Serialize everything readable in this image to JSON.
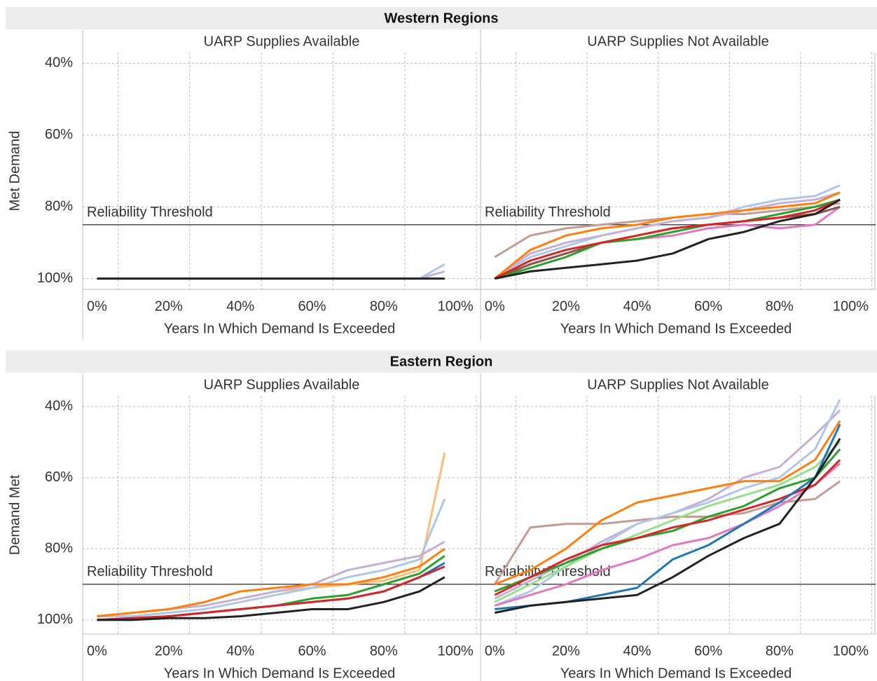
{
  "headers": [
    "Western Regions",
    "Eastern Region"
  ],
  "chart_data": [
    {
      "type": "line",
      "title": "UARP Supplies Available",
      "ylabel": "Met Demand",
      "xlabel": "Years In Which Demand Is Exceeded",
      "x": [
        0,
        10,
        20,
        30,
        40,
        50,
        60,
        70,
        80,
        90,
        97
      ],
      "xlim": [
        -4,
        107
      ],
      "ylim": [
        37,
        103
      ],
      "y_inverted": true,
      "grid": true,
      "xticks": [
        {
          "value": 0,
          "label": "0%"
        },
        {
          "value": 20,
          "label": "20%"
        },
        {
          "value": 40,
          "label": "40%"
        },
        {
          "value": 60,
          "label": "60%"
        },
        {
          "value": 80,
          "label": "80%"
        },
        {
          "value": 100,
          "label": "100%"
        }
      ],
      "yticks": [
        {
          "value": 40,
          "label": "40%"
        },
        {
          "value": 60,
          "label": "60%"
        },
        {
          "value": 80,
          "label": "80%"
        },
        {
          "value": 100,
          "label": "100%"
        }
      ],
      "annotations": [
        {
          "text": "Reliability Threshold",
          "value": 85
        }
      ],
      "series": [
        {
          "color": "#c5b0d5",
          "values": [
            100,
            100,
            100,
            100,
            100,
            100,
            100,
            100,
            100,
            100,
            98
          ]
        },
        {
          "color": "#aec7e8",
          "values": [
            100,
            100,
            100,
            100,
            100,
            100,
            100,
            100,
            100,
            100,
            96
          ]
        },
        {
          "color": "#222222",
          "values": [
            100,
            100,
            100,
            100,
            100,
            100,
            100,
            100,
            100,
            100,
            100
          ]
        }
      ]
    },
    {
      "type": "line",
      "title": "UARP Supplies Not Available",
      "xlabel": "Years In Which Demand Is Exceeded",
      "x": [
        0,
        10,
        20,
        30,
        40,
        50,
        60,
        70,
        80,
        90,
        97
      ],
      "xlim": [
        -4,
        107
      ],
      "ylim": [
        37,
        103
      ],
      "y_inverted": true,
      "grid": true,
      "xticks": [
        {
          "value": 0,
          "label": "0%"
        },
        {
          "value": 20,
          "label": "20%"
        },
        {
          "value": 40,
          "label": "40%"
        },
        {
          "value": 60,
          "label": "60%"
        },
        {
          "value": 80,
          "label": "80%"
        },
        {
          "value": 100,
          "label": "100%"
        }
      ],
      "yticks": [
        40,
        60,
        80,
        100
      ],
      "annotations": [
        {
          "text": "Reliability Threshold",
          "value": 85
        }
      ],
      "series": [
        {
          "color": "#c49c94",
          "values": [
            94,
            88,
            86,
            85,
            84,
            83,
            82,
            82,
            81,
            80,
            79
          ]
        },
        {
          "color": "#aec7e8",
          "values": [
            100,
            94,
            91,
            88,
            86,
            84,
            83,
            80,
            78,
            77,
            74
          ]
        },
        {
          "color": "#c5b0d5",
          "values": [
            100,
            93,
            90,
            88,
            86,
            84,
            83,
            81,
            79,
            78,
            76
          ]
        },
        {
          "color": "#ff7f0e",
          "values": [
            100,
            92,
            88,
            86,
            85,
            83,
            82,
            81,
            80,
            79,
            76
          ]
        },
        {
          "color": "#e377c2",
          "values": [
            100,
            96,
            93,
            90,
            89,
            88,
            86,
            85,
            86,
            85,
            80
          ]
        },
        {
          "color": "#8c564b",
          "values": [
            100,
            96,
            93,
            90,
            88,
            86,
            85,
            84,
            83,
            82,
            80
          ]
        },
        {
          "color": "#2ca02c",
          "values": [
            100,
            97,
            94,
            90,
            89,
            87,
            85,
            84,
            82,
            80,
            78
          ]
        },
        {
          "color": "#d62728",
          "values": [
            100,
            95,
            92,
            90,
            88,
            86,
            85,
            84,
            83,
            81,
            78
          ]
        },
        {
          "color": "#222222",
          "values": [
            100,
            98,
            97,
            96,
            95,
            93,
            89,
            87,
            84,
            82,
            78
          ]
        }
      ]
    },
    {
      "type": "line",
      "title": "UARP Supplies Available",
      "ylabel": "Demand Met",
      "xlabel": "Years In Which Demand Is Exceeded",
      "x": [
        0,
        10,
        20,
        30,
        40,
        50,
        60,
        70,
        80,
        90,
        97
      ],
      "xlim": [
        -4,
        107
      ],
      "ylim": [
        37,
        104
      ],
      "y_inverted": true,
      "grid": true,
      "xticks": [
        {
          "value": 0,
          "label": "0%"
        },
        {
          "value": 20,
          "label": "20%"
        },
        {
          "value": 40,
          "label": "40%"
        },
        {
          "value": 60,
          "label": "60%"
        },
        {
          "value": 80,
          "label": "80%"
        },
        {
          "value": 100,
          "label": "100%"
        }
      ],
      "yticks": [
        {
          "value": 40,
          "label": "40%"
        },
        {
          "value": 60,
          "label": "60%"
        },
        {
          "value": 80,
          "label": "80%"
        },
        {
          "value": 100,
          "label": "100%"
        }
      ],
      "annotations": [
        {
          "text": "Reliability Threshold",
          "value": 90
        }
      ],
      "series": [
        {
          "color": "#ffbb78",
          "values": [
            99,
            98,
            97,
            96,
            94,
            92,
            91,
            90,
            89,
            86,
            53
          ]
        },
        {
          "color": "#aec7e8",
          "values": [
            99,
            99,
            98,
            97,
            95,
            93,
            91,
            88,
            86,
            83,
            66
          ]
        },
        {
          "color": "#c5b0d5",
          "values": [
            99,
            98,
            97,
            96,
            94,
            92,
            90,
            86,
            84,
            82,
            78
          ]
        },
        {
          "color": "#ff7f0e",
          "values": [
            99,
            98,
            97,
            95,
            92,
            91,
            90,
            90,
            88,
            85,
            80
          ]
        },
        {
          "color": "#2ca02c",
          "values": [
            100,
            99.5,
            99,
            98,
            97,
            96,
            94,
            93,
            90,
            87,
            82
          ]
        },
        {
          "color": "#1f77b4",
          "values": [
            100,
            100,
            99,
            98,
            97,
            96,
            95,
            94,
            92,
            88,
            84
          ]
        },
        {
          "color": "#d62728",
          "values": [
            100,
            99.5,
            99,
            98,
            97,
            96,
            95,
            94,
            92,
            88,
            85
          ]
        },
        {
          "color": "#222222",
          "values": [
            100,
            100,
            99.5,
            99.5,
            99,
            98,
            97,
            97,
            95,
            92,
            88
          ]
        }
      ]
    },
    {
      "type": "line",
      "title": "UARP Supplies Not Available",
      "xlabel": "Years In Which Demand Is Exceeded",
      "x": [
        0,
        10,
        20,
        30,
        40,
        50,
        60,
        70,
        80,
        90,
        97
      ],
      "xlim": [
        -4,
        107
      ],
      "ylim": [
        37,
        104
      ],
      "y_inverted": true,
      "grid": true,
      "xticks": [
        {
          "value": 0,
          "label": "0%"
        },
        {
          "value": 20,
          "label": "20%"
        },
        {
          "value": 40,
          "label": "40%"
        },
        {
          "value": 60,
          "label": "60%"
        },
        {
          "value": 80,
          "label": "80%"
        },
        {
          "value": 100,
          "label": "100%"
        }
      ],
      "yticks": [
        40,
        60,
        80,
        100
      ],
      "annotations": [
        {
          "text": "Reliability Threshold",
          "value": 90
        }
      ],
      "series": [
        {
          "color": "#c49c94",
          "values": [
            90,
            74,
            73,
            73,
            72,
            71,
            71,
            70,
            67,
            66,
            61
          ]
        },
        {
          "color": "#c5b0d5",
          "values": [
            94,
            89,
            84,
            78,
            73,
            70,
            66,
            60,
            57,
            48,
            41
          ]
        },
        {
          "color": "#aec7e8",
          "values": [
            96,
            92,
            85,
            79,
            73,
            70,
            67,
            63,
            60,
            52,
            38
          ]
        },
        {
          "color": "#98df8a",
          "values": [
            95,
            90,
            85,
            80,
            76,
            72,
            68,
            65,
            62,
            57,
            50
          ]
        },
        {
          "color": "#ff7f0e",
          "values": [
            90,
            86,
            80,
            72,
            67,
            65,
            63,
            61,
            61,
            55,
            44
          ]
        },
        {
          "color": "#e377c2",
          "values": [
            96,
            93,
            90,
            86,
            83,
            79,
            77,
            73,
            68,
            62,
            56
          ]
        },
        {
          "color": "#2ca02c",
          "values": [
            92,
            88,
            84,
            80,
            77,
            75,
            71,
            68,
            63,
            60,
            52
          ]
        },
        {
          "color": "#d62728",
          "values": [
            93,
            88,
            83,
            79,
            77,
            74,
            72,
            69,
            66,
            62,
            55
          ]
        },
        {
          "color": "#1f77b4",
          "values": [
            97,
            96,
            95,
            93,
            91,
            83,
            79,
            73,
            67,
            60,
            45
          ]
        },
        {
          "color": "#222222",
          "values": [
            98,
            96,
            95,
            94,
            93,
            88,
            82,
            77,
            73,
            60,
            49
          ]
        }
      ]
    }
  ]
}
